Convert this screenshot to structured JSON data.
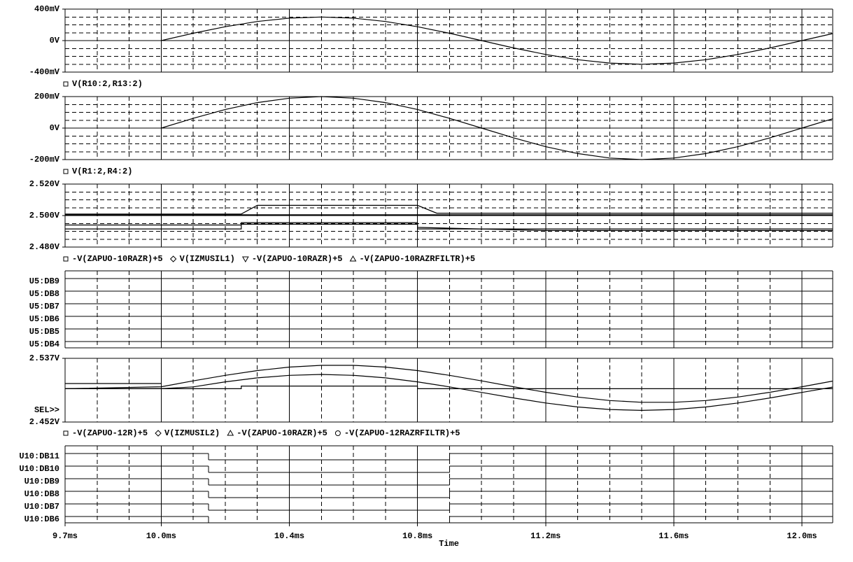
{
  "chart_data": [
    {
      "type": "line",
      "color": "#000000",
      "ylim": [
        -400,
        400
      ],
      "yticks": [
        {
          "value": 400,
          "label": "400mV"
        },
        {
          "value": 0,
          "label": "0V"
        },
        {
          "value": -400,
          "label": "-400mV"
        }
      ],
      "yminorticks": [
        -300,
        -200,
        -100,
        100,
        200,
        300
      ],
      "series": [
        {
          "name": "V(R10:2,R13:2)",
          "marker": "square",
          "x": [
            10.0,
            10.1,
            10.2,
            10.3,
            10.4,
            10.5,
            10.6,
            10.7,
            10.8,
            10.9,
            11.0,
            11.1,
            11.2,
            11.3,
            11.4,
            11.5,
            11.6,
            11.7,
            11.8,
            11.9,
            12.0,
            12.096
          ],
          "values": [
            0,
            93,
            176,
            243,
            285,
            300,
            285,
            243,
            176,
            93,
            0,
            -93,
            -176,
            -243,
            -285,
            -300,
            -285,
            -243,
            -176,
            -93,
            0,
            89
          ]
        }
      ]
    },
    {
      "type": "line",
      "color": "#000000",
      "ylim": [
        -200,
        200
      ],
      "yticks": [
        {
          "value": 200,
          "label": "200mV"
        },
        {
          "value": 0,
          "label": "0V"
        },
        {
          "value": -200,
          "label": "-200mV"
        }
      ],
      "yminorticks": [
        -150,
        -100,
        -50,
        50,
        100,
        150
      ],
      "series": [
        {
          "name": "V(R1:2,R4:2)",
          "marker": "square",
          "x": [
            10.0,
            10.1,
            10.2,
            10.3,
            10.4,
            10.5,
            10.6,
            10.7,
            10.8,
            10.9,
            11.0,
            11.1,
            11.2,
            11.3,
            11.4,
            11.5,
            11.6,
            11.7,
            11.8,
            11.9,
            12.0,
            12.096
          ],
          "values": [
            0,
            62,
            118,
            162,
            190,
            200,
            190,
            162,
            118,
            62,
            0,
            -62,
            -118,
            -162,
            -190,
            -200,
            -190,
            -162,
            -118,
            -62,
            0,
            59
          ]
        }
      ]
    },
    {
      "type": "line",
      "color": "#000000",
      "ylim": [
        2.48,
        2.52
      ],
      "yticks": [
        {
          "value": 2.52,
          "label": "2.520V"
        },
        {
          "value": 2.5,
          "label": "2.500V"
        },
        {
          "value": 2.48,
          "label": "2.480V"
        }
      ],
      "yminorticks": [
        2.485,
        2.49,
        2.495,
        2.505,
        2.51,
        2.515
      ],
      "series": [
        {
          "name": "-V(ZAPUO-10RAZR)+5",
          "marker": "square",
          "x": [
            9.7,
            10.25,
            10.3,
            10.8,
            10.86,
            12.096
          ],
          "values": [
            2.501,
            2.501,
            2.5065,
            2.5065,
            2.5015,
            2.5015
          ]
        },
        {
          "name": "V(IZMUSIL1)",
          "marker": "diamond",
          "x": [
            9.7,
            10.25,
            10.25,
            10.8,
            10.8,
            11.2,
            12.096
          ],
          "values": [
            2.4915,
            2.4915,
            2.4955,
            2.4955,
            2.4925,
            2.4905,
            2.4905
          ]
        },
        {
          "name": "-V(ZAPUO-10RAZR)+5",
          "marker": "triangle-down",
          "x": [
            9.7,
            10.25,
            10.25,
            10.8,
            10.8,
            12.096
          ],
          "values": [
            2.494,
            2.494,
            2.4945,
            2.4945,
            2.4915,
            2.4915
          ]
        },
        {
          "name": "-V(ZAPUO-10RAZRFILTR)+5",
          "marker": "triangle-up",
          "x": [
            9.7,
            12.096
          ],
          "values": [
            2.5005,
            2.5005
          ]
        }
      ]
    },
    {
      "type": "digital",
      "color": "#000000",
      "signals": [
        {
          "name": "U5:DB9",
          "x": [
            9.7
          ],
          "values": [
            1
          ]
        },
        {
          "name": "U5:DB8",
          "x": [
            9.7
          ],
          "values": [
            1
          ]
        },
        {
          "name": "U5:DB7",
          "x": [
            9.7
          ],
          "values": [
            1
          ]
        },
        {
          "name": "U5:DB6",
          "x": [
            9.7
          ],
          "values": [
            1
          ]
        },
        {
          "name": "U5:DB5",
          "x": [
            9.7
          ],
          "values": [
            1
          ]
        },
        {
          "name": "U5:DB4",
          "x": [
            9.7
          ],
          "values": [
            1
          ]
        }
      ]
    },
    {
      "type": "line",
      "color": "#000000",
      "ylim": [
        2.452,
        2.537
      ],
      "yticks": [
        {
          "value": 2.537,
          "label": "2.537V"
        },
        {
          "value": 2.452,
          "label": "2.452V"
        }
      ],
      "annotation": "SEL>>",
      "series": [
        {
          "name": "-V(ZAPUO-12R)+5",
          "marker": "square",
          "x": [
            9.7,
            10.0,
            10.1,
            10.2,
            10.3,
            10.4,
            10.5,
            10.6,
            10.7,
            10.8,
            10.9,
            11.0,
            11.1,
            11.2,
            11.3,
            11.4,
            11.5,
            11.6,
            11.7,
            11.8,
            11.9,
            12.0,
            12.096
          ],
          "values": [
            2.4965,
            2.4965,
            2.4989,
            2.5056,
            2.5109,
            2.5143,
            2.5155,
            2.5143,
            2.5109,
            2.5056,
            2.4989,
            2.4915,
            2.4841,
            2.4774,
            2.4721,
            2.4687,
            2.4675,
            2.4687,
            2.4721,
            2.4774,
            2.4841,
            2.4915,
            2.4986
          ]
        },
        {
          "name": "V(IZMUSIL2)",
          "marker": "diamond",
          "x": [
            9.7,
            10.0
          ],
          "values": [
            2.5034,
            2.5034
          ]
        },
        {
          "name": "-V(ZAPUO-10RAZR)+5",
          "marker": "triangle-up",
          "x": [
            9.7,
            10.25,
            10.25,
            10.8,
            10.8,
            12.096
          ],
          "values": [
            2.4965,
            2.4965,
            2.5,
            2.5,
            2.4965,
            2.4965
          ]
        },
        {
          "name": "-V(ZAPUO-12RAZRFILTR)+5",
          "marker": "circle",
          "x": [
            9.7,
            10.0,
            10.1,
            10.2,
            10.3,
            10.4,
            10.5,
            10.6,
            10.7,
            10.8,
            10.9,
            11.0,
            11.1,
            11.2,
            11.3,
            11.4,
            11.5,
            11.6,
            11.7,
            11.8,
            11.9,
            12.0,
            12.096
          ],
          "values": [
            2.4965,
            2.4991,
            2.5069,
            2.5143,
            2.5207,
            2.5253,
            2.5277,
            2.5277,
            2.5253,
            2.5207,
            2.5143,
            2.5069,
            2.4991,
            2.4917,
            2.4853,
            2.4807,
            2.4783,
            2.4783,
            2.4807,
            2.4853,
            2.4917,
            2.4991,
            2.5066
          ]
        }
      ]
    },
    {
      "type": "digital",
      "color": "#000000",
      "xlim": [
        9.7,
        12.096
      ],
      "xticks": [
        {
          "value": 9.7,
          "label": "9.7ms"
        },
        {
          "value": 10.0,
          "label": "10.0ms"
        },
        {
          "value": 10.4,
          "label": "10.4ms"
        },
        {
          "value": 10.8,
          "label": "10.8ms"
        },
        {
          "value": 11.2,
          "label": "11.2ms"
        },
        {
          "value": 11.6,
          "label": "11.6ms"
        },
        {
          "value": 12.0,
          "label": "12.0ms"
        }
      ],
      "xminorticks": [
        9.8,
        9.9,
        10.1,
        10.2,
        10.3,
        10.5,
        10.6,
        10.7,
        10.9,
        11.0,
        11.1,
        11.3,
        11.4,
        11.5,
        11.7,
        11.8,
        11.9
      ],
      "xlabel": "Time",
      "signals": [
        {
          "name": "U10:DB11",
          "x": [
            9.7,
            10.148,
            10.9
          ],
          "values": [
            1,
            0,
            1
          ]
        },
        {
          "name": "U10:DB10",
          "x": [
            9.7,
            10.148,
            10.9
          ],
          "values": [
            1,
            0,
            1
          ]
        },
        {
          "name": "U10:DB9",
          "x": [
            9.7,
            10.148,
            10.9
          ],
          "values": [
            1,
            0,
            1
          ]
        },
        {
          "name": "U10:DB8",
          "x": [
            9.7,
            10.148,
            10.9
          ],
          "values": [
            1,
            0,
            1
          ]
        },
        {
          "name": "U10:DB7",
          "x": [
            9.7,
            10.148,
            10.9
          ],
          "values": [
            1,
            0,
            1
          ]
        },
        {
          "name": "U10:DB6",
          "x": [
            9.7,
            10.148,
            10.9
          ],
          "values": [
            1,
            0,
            1
          ]
        }
      ]
    }
  ]
}
